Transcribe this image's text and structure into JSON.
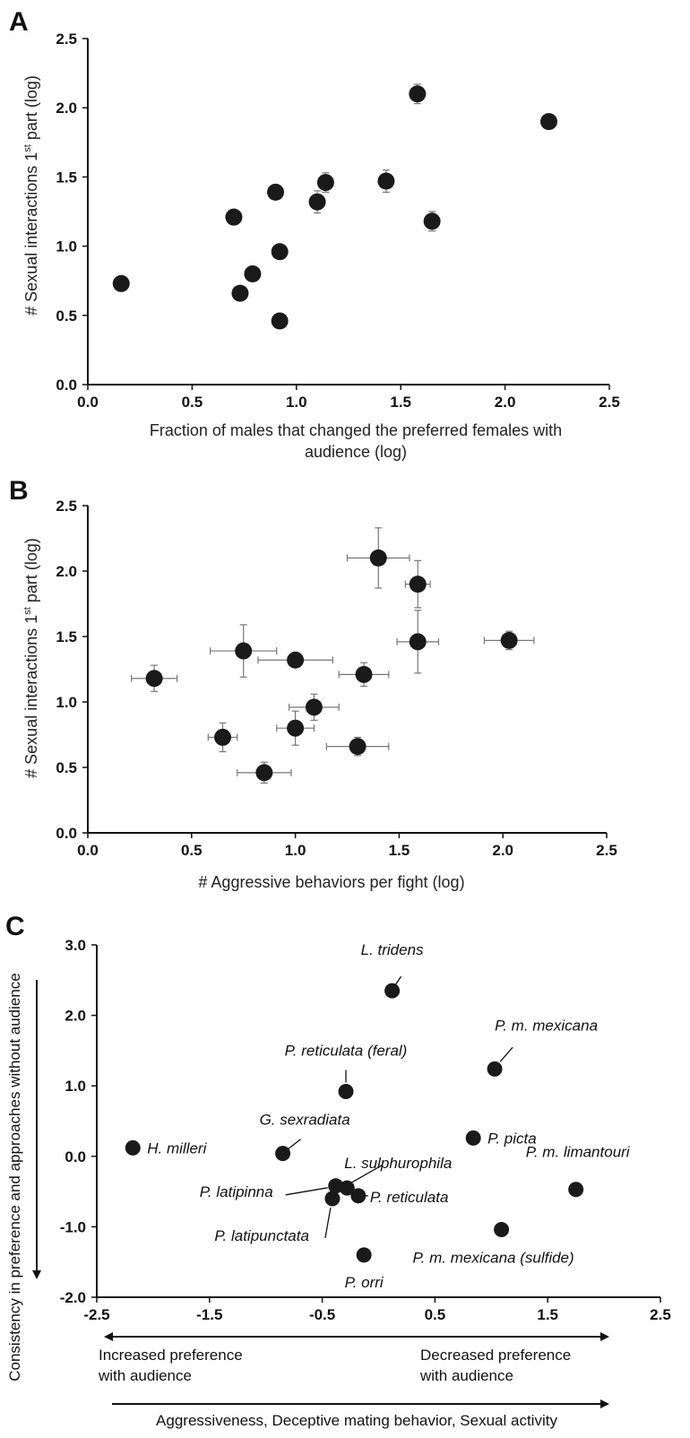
{
  "chart_data": [
    {
      "panel": "A",
      "type": "scatter",
      "xlabel": "Fraction of males that changed the preferred females with audience (log)",
      "ylabel": "# Sexual interactions 1st part (log)",
      "xlim": [
        0,
        2.5
      ],
      "ylim": [
        0,
        2.5
      ],
      "xticks": [
        "0.0",
        "0.5",
        "1.0",
        "1.5",
        "2.0",
        "2.5"
      ],
      "yticks": [
        "0.0",
        "0.5",
        "1.0",
        "1.5",
        "2.0",
        "2.5"
      ],
      "points": [
        {
          "x": 0.16,
          "y": 0.73,
          "yerr": 0.05
        },
        {
          "x": 0.7,
          "y": 1.21,
          "yerr": 0.05
        },
        {
          "x": 0.73,
          "y": 0.66,
          "yerr": 0.05
        },
        {
          "x": 0.79,
          "y": 0.8,
          "yerr": 0.04
        },
        {
          "x": 0.9,
          "y": 1.39,
          "yerr": 0.04
        },
        {
          "x": 0.92,
          "y": 0.96,
          "yerr": 0.04
        },
        {
          "x": 0.92,
          "y": 0.46,
          "yerr": 0.04
        },
        {
          "x": 1.1,
          "y": 1.32,
          "yerr": 0.08
        },
        {
          "x": 1.14,
          "y": 1.46,
          "yerr": 0.07
        },
        {
          "x": 1.43,
          "y": 1.47,
          "yerr": 0.08
        },
        {
          "x": 1.58,
          "y": 2.1,
          "yerr": 0.07
        },
        {
          "x": 1.65,
          "y": 1.18,
          "yerr": 0.07
        },
        {
          "x": 2.21,
          "y": 1.9,
          "yerr": 0.03
        }
      ]
    },
    {
      "panel": "B",
      "type": "scatter",
      "xlabel": "# Aggressive behaviors per fight (log)",
      "ylabel": "# Sexual interactions 1st part (log)",
      "xlim": [
        0,
        2.5
      ],
      "ylim": [
        0,
        2.5
      ],
      "xticks": [
        "0.0",
        "0.5",
        "1.0",
        "1.5",
        "2.0",
        "2.5"
      ],
      "yticks": [
        "0.0",
        "0.5",
        "1.0",
        "1.5",
        "2.0",
        "2.5"
      ],
      "points": [
        {
          "x": 0.32,
          "y": 1.18,
          "xerr": 0.11,
          "yerr": 0.1
        },
        {
          "x": 0.65,
          "y": 0.73,
          "xerr": 0.07,
          "yerr": 0.11
        },
        {
          "x": 0.75,
          "y": 1.39,
          "xerr": 0.16,
          "yerr": 0.2
        },
        {
          "x": 0.85,
          "y": 0.46,
          "xerr": 0.13,
          "yerr": 0.08
        },
        {
          "x": 1.0,
          "y": 1.32,
          "xerr": 0.18,
          "yerr": 0.0
        },
        {
          "x": 1.0,
          "y": 0.8,
          "xerr": 0.09,
          "yerr": 0.13
        },
        {
          "x": 1.09,
          "y": 0.96,
          "xerr": 0.12,
          "yerr": 0.1
        },
        {
          "x": 1.3,
          "y": 0.66,
          "xerr": 0.15,
          "yerr": 0.07
        },
        {
          "x": 1.33,
          "y": 1.21,
          "xerr": 0.12,
          "yerr": 0.09
        },
        {
          "x": 1.4,
          "y": 2.1,
          "xerr": 0.15,
          "yerr": 0.23
        },
        {
          "x": 1.59,
          "y": 1.9,
          "xerr": 0.06,
          "yerr": 0.18
        },
        {
          "x": 1.59,
          "y": 1.46,
          "xerr": 0.1,
          "yerr": 0.24
        },
        {
          "x": 2.03,
          "y": 1.47,
          "xerr": 0.12,
          "yerr": 0.07
        }
      ]
    },
    {
      "panel": "C",
      "type": "scatter",
      "xlabel": "Aggressiveness, Deceptive mating behavior, Sexual activity",
      "ylabel": "Consistency in preference and approaches without audience",
      "xlim": [
        -2.5,
        2.5
      ],
      "ylim": [
        -2.0,
        3.0
      ],
      "xticks": [
        "-2.5",
        "-1.5",
        "-0.5",
        "0.5",
        "1.5",
        "2.5"
      ],
      "yticks": [
        "-2.0",
        "-1.0",
        "0.0",
        "1.0",
        "2.0",
        "3.0"
      ],
      "arrow_labels": {
        "left": [
          "Increased preference",
          "with audience"
        ],
        "right": [
          "Decreased preference",
          "with audience"
        ]
      },
      "points": [
        {
          "label": "H. milleri",
          "x": -2.18,
          "y": 0.12
        },
        {
          "label": "G. sexradiata",
          "x": -0.85,
          "y": 0.04
        },
        {
          "label": "P. reticulata (feral)",
          "x": -0.29,
          "y": 0.92
        },
        {
          "label": "L. tridens",
          "x": 0.12,
          "y": 2.35
        },
        {
          "label": "P. m. mexicana",
          "x": 1.03,
          "y": 1.24
        },
        {
          "label": "P. picta",
          "x": 0.84,
          "y": 0.26
        },
        {
          "label": "L. sulphurophila",
          "x": -0.28,
          "y": -0.45
        },
        {
          "label": "P. latipinna",
          "x": -0.38,
          "y": -0.42
        },
        {
          "label": "P. reticulata",
          "x": -0.18,
          "y": -0.56
        },
        {
          "label": "P. latipunctata",
          "x": -0.41,
          "y": -0.6
        },
        {
          "label": "P. orri",
          "x": -0.13,
          "y": -1.4
        },
        {
          "label": "P. m. mexicana (sulfide)",
          "x": 1.09,
          "y": -1.04
        },
        {
          "label": "P. m. limantouri",
          "x": 1.75,
          "y": -0.47
        }
      ]
    }
  ]
}
